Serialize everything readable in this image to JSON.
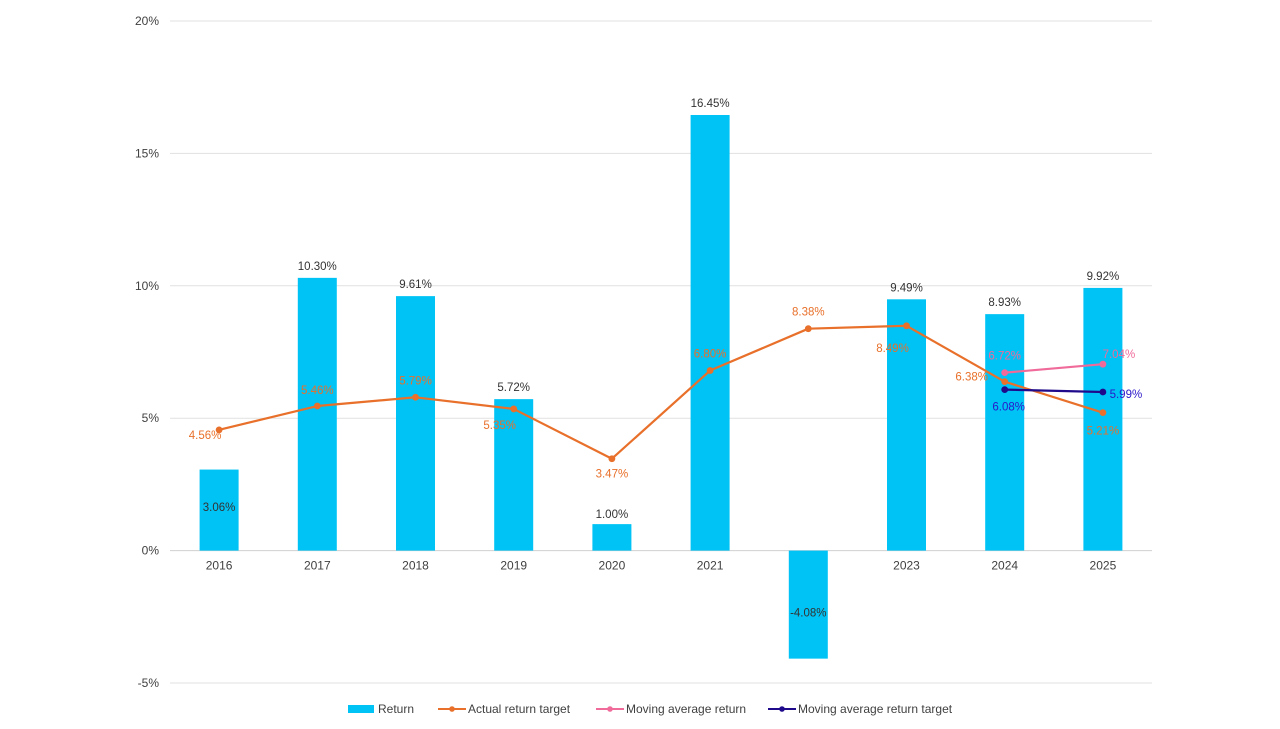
{
  "chart_data": {
    "type": "bar",
    "categories": [
      "2016",
      "2017",
      "2018",
      "2019",
      "2020",
      "2021",
      "2022",
      "2023",
      "2024",
      "2025"
    ],
    "ylim": [
      -5,
      20
    ],
    "yticks": [
      {
        "value": -5,
        "label": "-5%"
      },
      {
        "value": 0,
        "label": "0%"
      },
      {
        "value": 5,
        "label": "5%"
      },
      {
        "value": 10,
        "label": "10%"
      },
      {
        "value": 15,
        "label": "15%"
      },
      {
        "value": 20,
        "label": "20%"
      }
    ],
    "grid": true,
    "legend_position": "bottom",
    "series": [
      {
        "name": "Return",
        "type": "bar",
        "color": "#00C3F5",
        "label_color": "#333333",
        "values": [
          3.06,
          10.3,
          9.61,
          5.72,
          1.0,
          16.45,
          -4.08,
          9.49,
          8.93,
          9.92
        ],
        "labels": [
          "3.06%",
          "10.30%",
          "9.61%",
          "5.72%",
          "1.00%",
          "16.45%",
          "-4.08%",
          "9.49%",
          "8.93%",
          "9.92%"
        ]
      },
      {
        "name": "Actual return target",
        "type": "line",
        "color": "#E8702A",
        "label_color": "#E8702A",
        "values": [
          4.56,
          5.46,
          5.79,
          5.35,
          3.47,
          6.8,
          8.38,
          8.49,
          6.38,
          5.21
        ],
        "labels": [
          "4.56%",
          "5.46%",
          "5.79%",
          "5.35%",
          "3.47%",
          "6.80%",
          "8.38%",
          "8.49%",
          "6.38%",
          "5.21%"
        ]
      },
      {
        "name": "Moving average return",
        "type": "line",
        "color": "#F06A9A",
        "label_color": "#F06A9A",
        "values": [
          null,
          null,
          null,
          null,
          null,
          null,
          null,
          null,
          6.72,
          7.04
        ],
        "labels": [
          null,
          null,
          null,
          null,
          null,
          null,
          null,
          null,
          "6.72%",
          "7.04%"
        ]
      },
      {
        "name": "Moving average return target",
        "type": "line",
        "color": "#1F0A8C",
        "label_color": "#2B17C9",
        "values": [
          null,
          null,
          null,
          null,
          null,
          null,
          null,
          null,
          6.08,
          5.99
        ],
        "labels": [
          null,
          null,
          null,
          null,
          null,
          null,
          null,
          null,
          "6.08%",
          "5.99%"
        ]
      }
    ]
  }
}
